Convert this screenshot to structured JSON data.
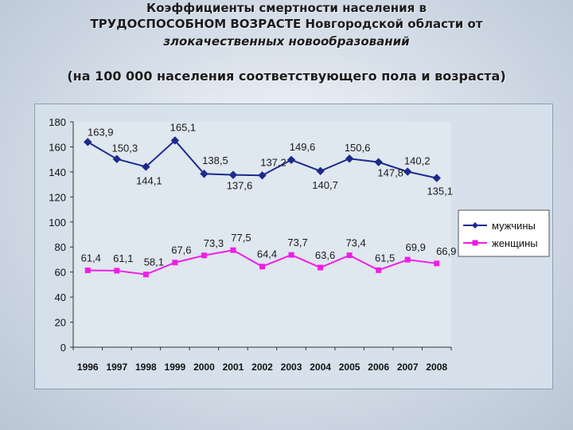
{
  "title_line1": "Коэффициенты смертности населения в",
  "title_line2": "ТРУДОСПОСОБНОМ ВОЗРАСТЕ Новгородской области от",
  "title_line3": "злокачественных новообразований",
  "subtitle": "(на 100 000 населения соответствующего пола и возраста)",
  "chart_data": {
    "type": "line",
    "x": [
      "1996",
      "1997",
      "1998",
      "1999",
      "2000",
      "2001",
      "2002",
      "2003",
      "2004",
      "2005",
      "2006",
      "2007",
      "2008"
    ],
    "ylim": [
      0,
      180
    ],
    "yticks": [
      0,
      20,
      40,
      60,
      80,
      100,
      120,
      140,
      160,
      180
    ],
    "grid": false,
    "legend_position": "right",
    "series": [
      {
        "name": "мужчины",
        "color": "#1c2a8c",
        "marker": "diamond",
        "values": [
          163.9,
          150.3,
          144.1,
          165.1,
          138.5,
          137.6,
          137.2,
          149.6,
          140.7,
          150.6,
          147.8,
          140.2,
          135.1
        ],
        "labels": [
          "163,9",
          "150,3",
          "144,1",
          "165,1",
          "138,5",
          "137,6",
          "137,2",
          "149,6",
          "140,7",
          "150,6",
          "147,8",
          "140,2",
          "135,1"
        ]
      },
      {
        "name": "женщины",
        "color": "#ee1ee6",
        "marker": "square",
        "values": [
          61.4,
          61.1,
          58.1,
          67.6,
          73.3,
          77.5,
          64.4,
          73.7,
          63.6,
          73.4,
          61.5,
          69.9,
          66.9
        ],
        "labels": [
          "61,4",
          "61,1",
          "58,1",
          "67,6",
          "73,3",
          "77,5",
          "64,4",
          "73,7",
          "63,6",
          "73,4",
          "61,5",
          "69,9",
          "66,9"
        ]
      }
    ]
  }
}
